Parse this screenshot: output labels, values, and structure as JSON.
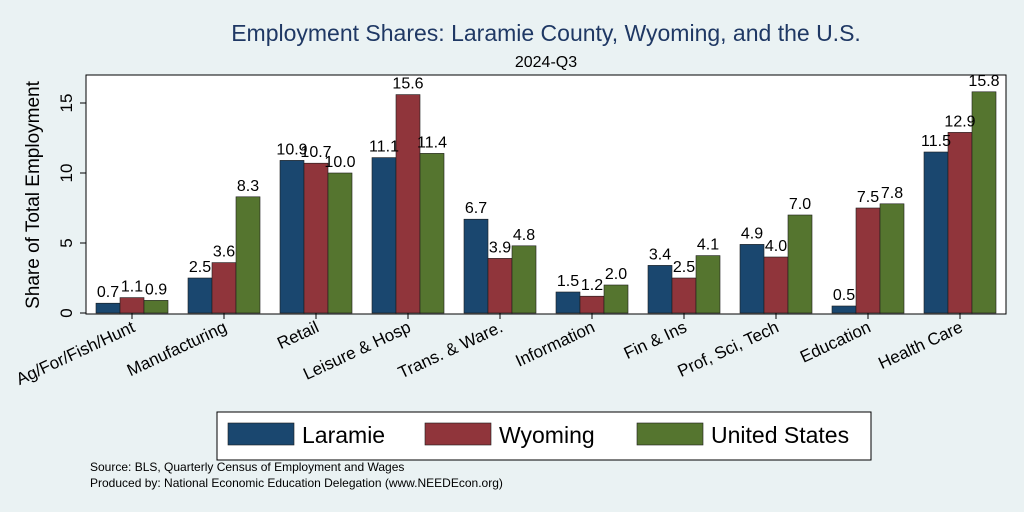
{
  "title": "Employment Shares: Laramie County, Wyoming, and the U.S.",
  "subtitle": "2024-Q3",
  "source_line1": "Source: BLS, Quarterly Census of Employment and Wages",
  "source_line2": "Produced by: National Economic Education Delegation (www.NEEDEcon.org)",
  "colors": {
    "background": "#eaf2f3",
    "plot_background": "#ffffff",
    "Laramie": "#1a476f",
    "Wyoming": "#90353b",
    "United States": "#55752f"
  },
  "chart_data": {
    "type": "bar",
    "title": "Employment Shares: Laramie County, Wyoming, and the U.S.",
    "subtitle": "2024-Q3",
    "xlabel": "",
    "ylabel": "Share of Total Employment",
    "ylim": [
      0,
      17
    ],
    "yticks": [
      0,
      5,
      10,
      15
    ],
    "grid": false,
    "legend_position": "bottom",
    "categories": [
      "Ag/For/Fish/Hunt",
      "Manufacturing",
      "Retail",
      "Leisure & Hosp",
      "Trans. & Ware.",
      "Information",
      "Fin & Ins",
      "Prof, Sci, Tech",
      "Education",
      "Health Care"
    ],
    "series": [
      {
        "name": "Laramie",
        "values": [
          0.7,
          2.5,
          10.9,
          11.1,
          6.7,
          1.5,
          3.4,
          4.9,
          0.5,
          11.5
        ]
      },
      {
        "name": "Wyoming",
        "values": [
          1.1,
          3.6,
          10.7,
          15.6,
          3.9,
          1.2,
          2.5,
          4.0,
          7.5,
          12.9
        ]
      },
      {
        "name": "United States",
        "values": [
          0.9,
          8.3,
          10.0,
          11.4,
          4.8,
          2.0,
          4.1,
          7.0,
          7.8,
          15.8
        ]
      }
    ]
  }
}
